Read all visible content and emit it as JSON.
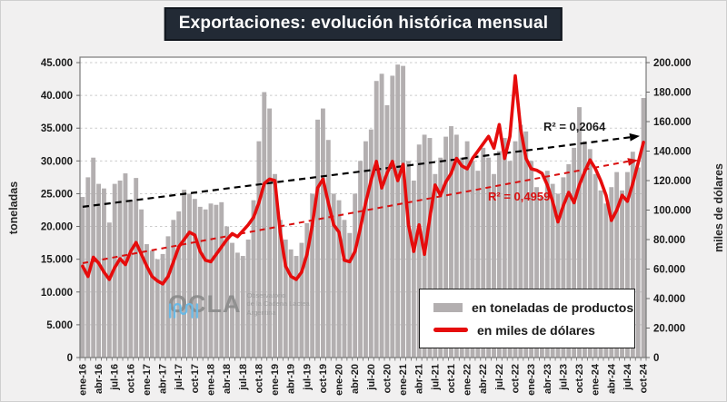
{
  "title": "Exportaciones: evolución histórica mensual",
  "chart_data": {
    "type": "bar",
    "combo": "bar + line, dual axis, monthly from ene-16 to oct-24",
    "x_start": "ene-16",
    "x_end": "oct-24",
    "n_points": 106,
    "grid": true,
    "series": [
      {
        "name": "en toneladas de productos",
        "type": "bar",
        "axis": "left",
        "color": "#b3afb0",
        "values": [
          24500,
          27500,
          30500,
          26500,
          25800,
          20600,
          26500,
          27000,
          28100,
          24000,
          27400,
          22600,
          17300,
          16300,
          15000,
          15800,
          18500,
          21000,
          22300,
          25600,
          25000,
          24200,
          23000,
          22600,
          23500,
          23300,
          23700,
          20000,
          17500,
          16000,
          15500,
          18000,
          24000,
          33000,
          40500,
          38000,
          28000,
          21000,
          18000,
          16500,
          15500,
          17500,
          20500,
          25000,
          36300,
          38000,
          33200,
          25000,
          24000,
          21000,
          19000,
          25000,
          30000,
          33000,
          34800,
          42200,
          43300,
          38500,
          43000,
          44700,
          44500,
          30000,
          27000,
          32500,
          34000,
          33500,
          28000,
          30500,
          33700,
          35300,
          34000,
          30500,
          33000,
          30000,
          28500,
          32000,
          30500,
          28000,
          31500,
          33500,
          30000,
          33000,
          35500,
          34500,
          30000,
          26000,
          24500,
          28500,
          26500,
          25000,
          27500,
          29500,
          32000,
          38200,
          33000,
          31800,
          28000,
          25500,
          23500,
          26000,
          28300,
          25500,
          28300,
          31400,
          29000,
          39600
        ]
      },
      {
        "name": "en miles de dólares",
        "type": "line",
        "axis": "right",
        "color": "#e60c0c",
        "values": [
          62000,
          55000,
          68000,
          64000,
          58000,
          53000,
          61000,
          67000,
          63000,
          72000,
          78000,
          70000,
          62000,
          55000,
          52000,
          50000,
          55000,
          65000,
          75000,
          80000,
          85000,
          83000,
          72000,
          66000,
          65000,
          70000,
          75000,
          80000,
          84000,
          82000,
          86000,
          90000,
          95000,
          105000,
          118000,
          121000,
          120000,
          85000,
          62000,
          55000,
          53000,
          58000,
          70000,
          90000,
          115000,
          121000,
          105000,
          90000,
          85000,
          66000,
          65000,
          72000,
          88000,
          105000,
          120000,
          133000,
          115000,
          125000,
          133000,
          120000,
          131000,
          90000,
          72000,
          90000,
          70000,
          95000,
          117000,
          110000,
          119000,
          125000,
          135000,
          130000,
          128000,
          135000,
          140000,
          145000,
          150000,
          142000,
          158000,
          135000,
          150000,
          191000,
          155000,
          135000,
          128000,
          127000,
          125000,
          117000,
          106000,
          92000,
          103000,
          112000,
          105000,
          117000,
          126000,
          134000,
          128000,
          120000,
          110000,
          93000,
          100000,
          110000,
          106000,
          118000,
          132000,
          146000
        ]
      }
    ],
    "left_axis": {
      "title": "toneladas",
      "min": 0,
      "max": 45000,
      "step": 5000,
      "tick_labels": [
        "45.000",
        "40.000",
        "35.000",
        "30.000",
        "25.000",
        "20.000",
        "15.000",
        "10.000",
        "5.000",
        "0"
      ]
    },
    "right_axis": {
      "title": "miles de dólares",
      "min": 0,
      "max": 200000,
      "step": 20000,
      "tick_labels": [
        "200.000",
        "180.000",
        "160.000",
        "140.000",
        "120.000",
        "100.000",
        "80.000",
        "60.000",
        "40.000",
        "20.000",
        "0"
      ]
    },
    "x_axis": {
      "label_every_months": 3,
      "tick_labels": [
        "ene-16",
        "abr-16",
        "jul-16",
        "oct-16",
        "ene-17",
        "abr-17",
        "jul-17",
        "oct-17",
        "ene-18",
        "abr-18",
        "jul-18",
        "oct-18",
        "ene-19",
        "abr-19",
        "jul-19",
        "oct-19",
        "ene-20",
        "abr-20",
        "jul-20",
        "oct-20",
        "ene-21",
        "abr-21",
        "jul-21",
        "oct-21",
        "ene-22",
        "abr-22",
        "jul-22",
        "oct-22",
        "ene-23",
        "abr-23",
        "jul-23",
        "oct-23",
        "ene-24",
        "abr-24",
        "jul-24",
        "oct-24"
      ]
    },
    "trendlines": [
      {
        "target": "toneladas",
        "color": "#000000",
        "dashed": true,
        "start_value": 23000,
        "end_value": 33600,
        "r2_label": "R² = 0,2064"
      },
      {
        "target": "miles de dólares",
        "color": "#d90f0f",
        "dashed": true,
        "start_value": 64000,
        "end_value": 133000,
        "r2_label": "R² = 0,4959"
      }
    ]
  },
  "legend": {
    "items": [
      {
        "label": "en toneladas de productos",
        "swatch": "bar-swatch",
        "color": "#b3afb0"
      },
      {
        "label": "en miles de dólares",
        "swatch": "line-swatch",
        "color": "#e60c0c"
      }
    ]
  },
  "watermark": {
    "name": "OCLA",
    "sub1": "Observatorio",
    "sub2": "de la Cadena Láctea",
    "sub3": "Argentina",
    "icon_color": "#63b9e9"
  },
  "colors": {
    "background": "#f1f0f0",
    "title_bg": "#222a35",
    "title_text": "#ffffff",
    "plot_bg": "#ffffff",
    "gridline": "#cbcbcb",
    "bar": "#b3afb0",
    "line": "#e60c0c"
  }
}
